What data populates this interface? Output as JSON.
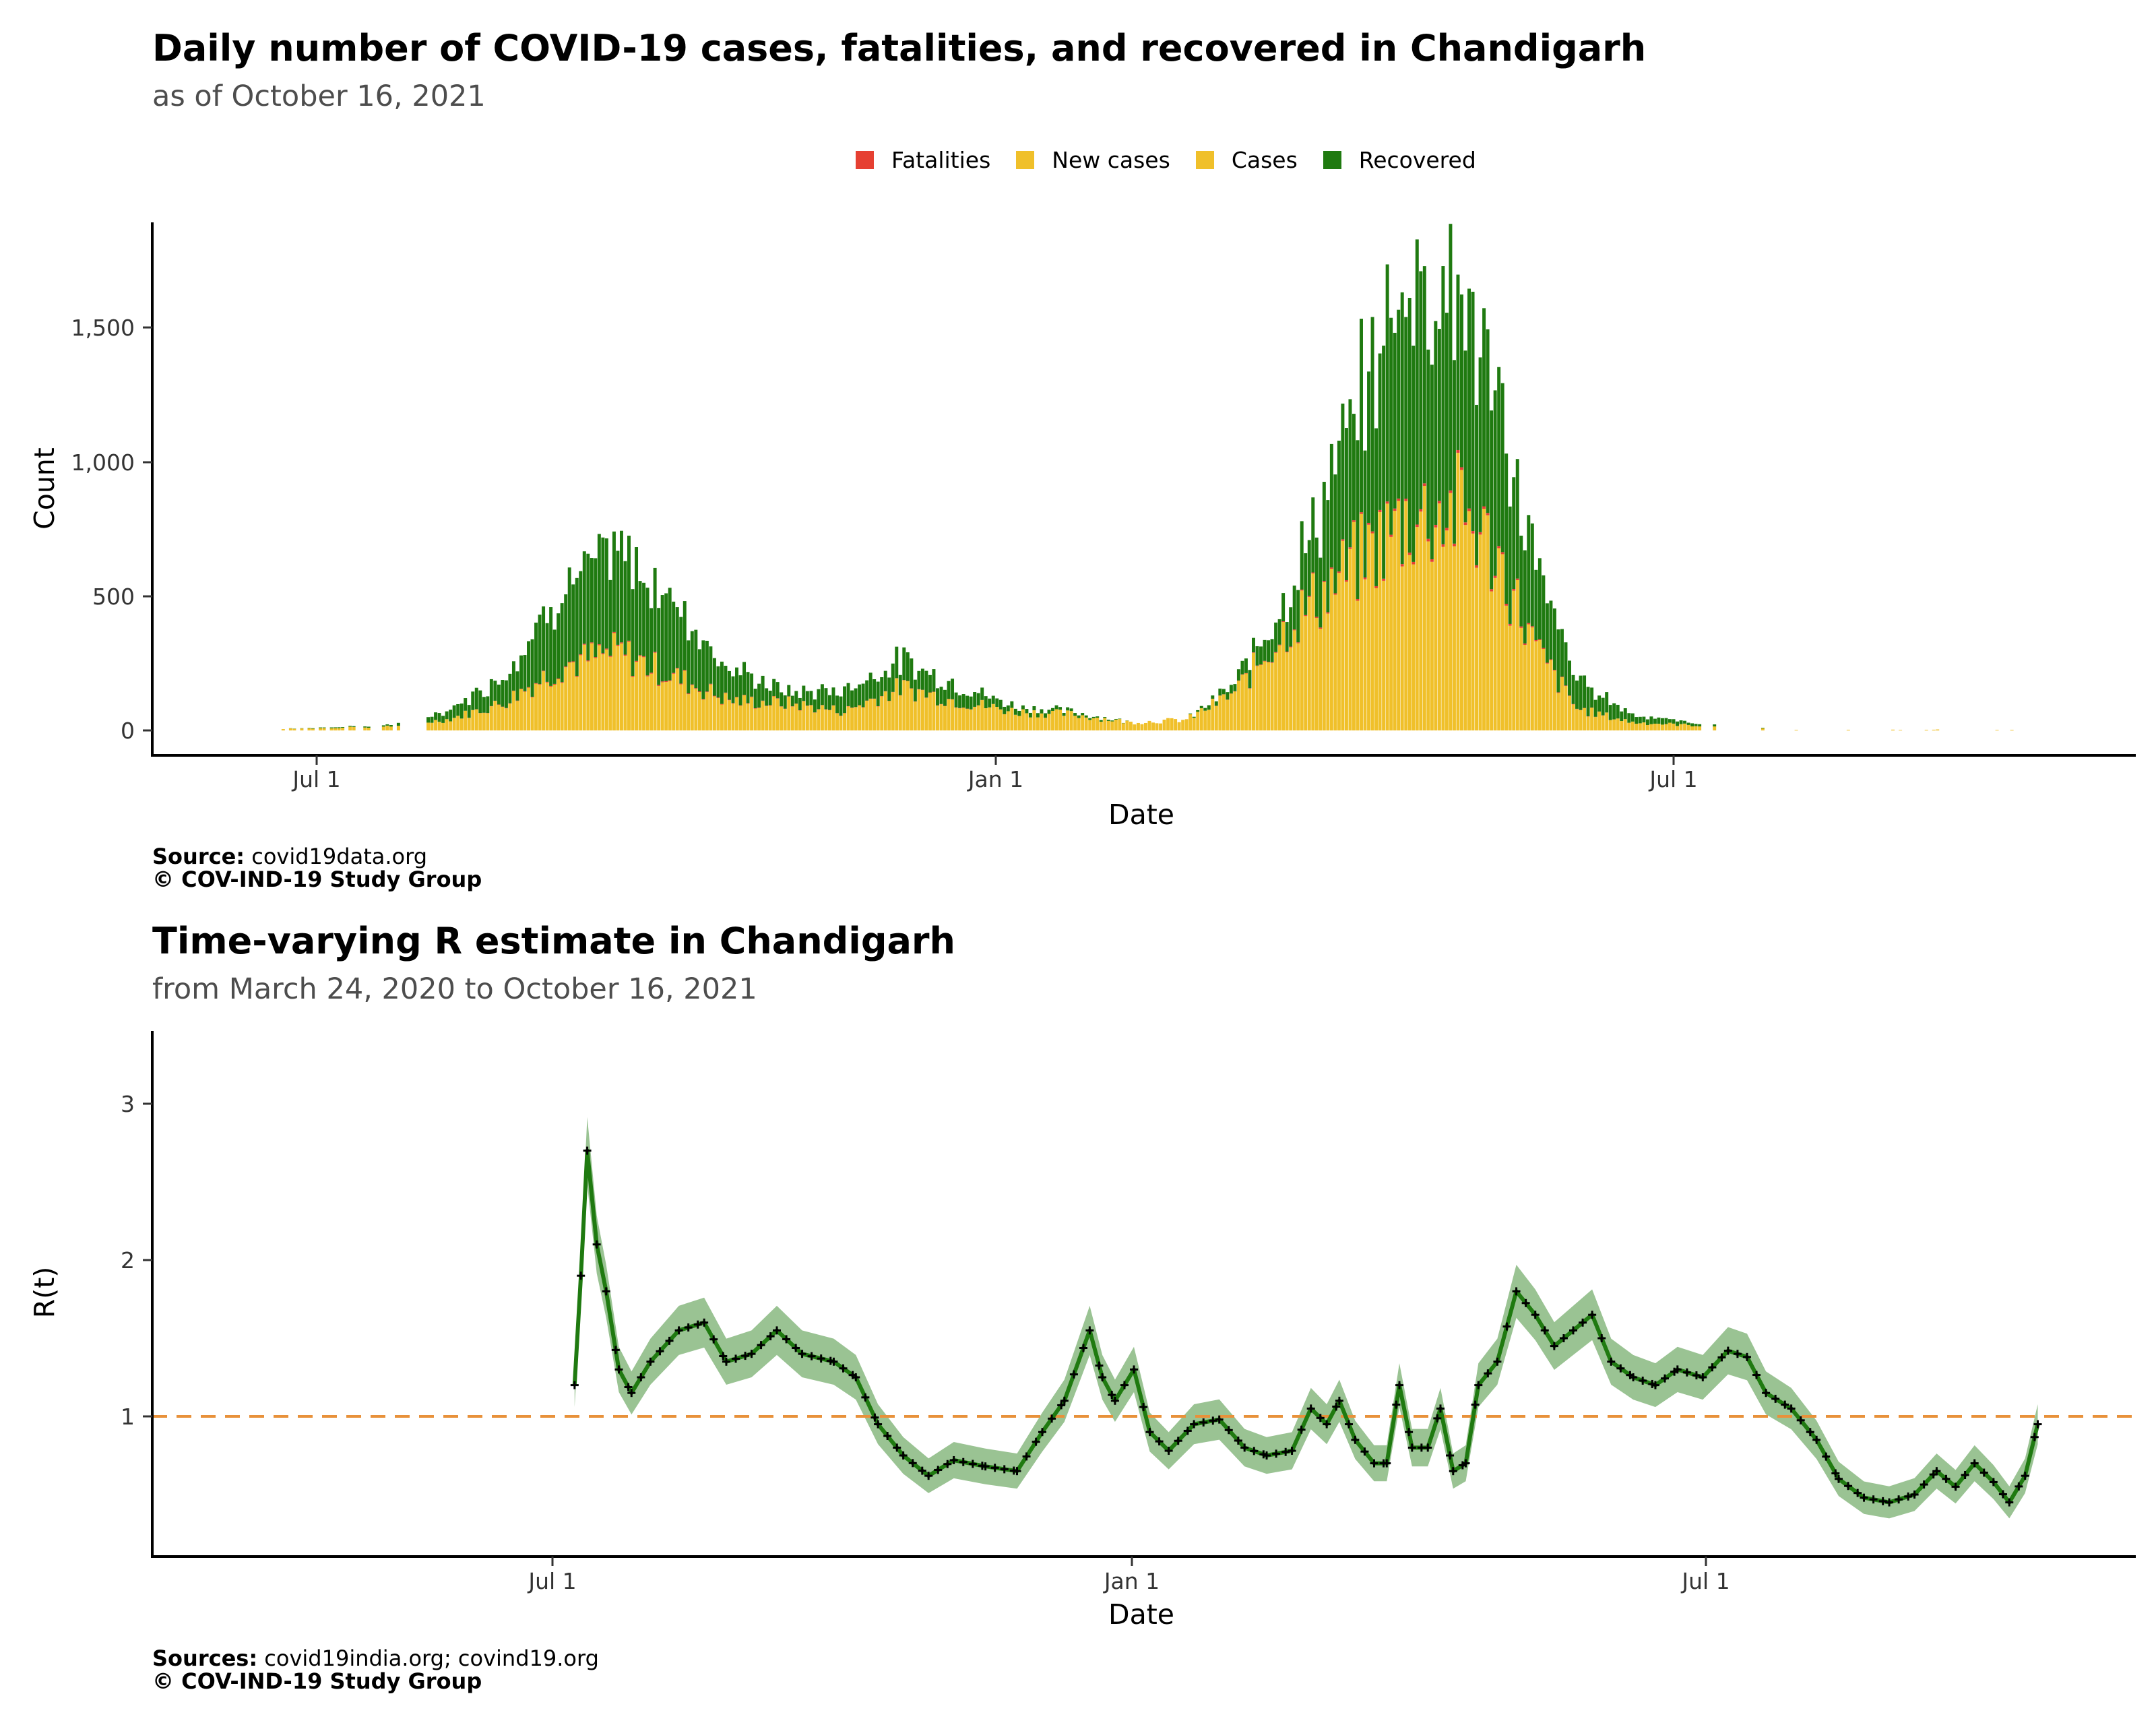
{
  "chart_data": [
    {
      "type": "bar",
      "title": "Daily number of COVID-19 cases, fatalities, and recovered in Chandigarh",
      "subtitle": "as of October 16, 2021",
      "xlabel": "Date",
      "ylabel": "Count",
      "x_tick_labels": [
        "Jul 1",
        "Jan 1",
        "Jul 1"
      ],
      "y_tick_labels": [
        "0",
        "500",
        "1,000",
        "1,500"
      ],
      "ylim": [
        0,
        1800
      ],
      "grid": false,
      "legend_position": "top-center",
      "legend": [
        {
          "name": "Fatalities",
          "color": "#e64032"
        },
        {
          "name": "New cases",
          "color": "#f0c02a"
        },
        {
          "name": "Cases",
          "color": "#f0c02a"
        },
        {
          "name": "Recovered",
          "color": "#1f7a10"
        }
      ],
      "x_dates_monthly": [
        "2020-06-20",
        "2020-07-20",
        "2020-08-05",
        "2020-08-20",
        "2020-09-05",
        "2020-09-20",
        "2020-10-05",
        "2020-10-20",
        "2020-11-05",
        "2020-11-20",
        "2020-12-05",
        "2020-12-20",
        "2021-01-05",
        "2021-01-20",
        "2021-02-05",
        "2021-02-20",
        "2021-03-05",
        "2021-03-20",
        "2021-04-05",
        "2021-04-20",
        "2021-05-05",
        "2021-05-15",
        "2021-05-25",
        "2021-06-05",
        "2021-06-20",
        "2021-07-05",
        "2021-08-01",
        "2021-09-01",
        "2021-10-01"
      ],
      "series": [
        {
          "name": "New cases",
          "values": [
            5,
            15,
            40,
            100,
            240,
            290,
            200,
            110,
            100,
            70,
            160,
            110,
            70,
            60,
            30,
            40,
            140,
            400,
            600,
            780,
            820,
            630,
            300,
            80,
            30,
            20,
            3,
            3,
            3
          ]
        },
        {
          "name": "Recovered",
          "values": [
            0,
            5,
            30,
            100,
            280,
            370,
            280,
            120,
            40,
            80,
            100,
            60,
            20,
            10,
            0,
            0,
            30,
            140,
            500,
            900,
            820,
            540,
            320,
            110,
            30,
            10,
            0,
            0,
            0
          ]
        },
        {
          "name": "Fatalities",
          "values": [
            0,
            0,
            0,
            1,
            3,
            4,
            3,
            2,
            1,
            1,
            1,
            1,
            0,
            0,
            0,
            0,
            1,
            3,
            6,
            9,
            10,
            8,
            4,
            1,
            0,
            0,
            0,
            0,
            0
          ]
        }
      ],
      "source_label": "Source:",
      "source_text": "covid19data.org",
      "copyright": "© COV-IND-19 Study Group"
    },
    {
      "type": "line",
      "title": "Time-varying R estimate in Chandigarh",
      "subtitle": "from March 24, 2020 to October 16, 2021",
      "xlabel": "Date",
      "ylabel": "R(t)",
      "x_tick_labels": [
        "Jul 1",
        "Jan 1",
        "Jul 1"
      ],
      "y_tick_labels": [
        "1",
        "2",
        "3"
      ],
      "ylim": [
        0.0,
        3.5
      ],
      "reference_line": {
        "y": 1,
        "color": "#e8913a",
        "style": "dashed"
      },
      "grid": false,
      "series": [
        {
          "name": "R(t)",
          "color": "#1f7a10",
          "points": [
            [
              "2020-07-08",
              1.2
            ],
            [
              "2020-07-10",
              1.9
            ],
            [
              "2020-07-12",
              2.7
            ],
            [
              "2020-07-15",
              2.1
            ],
            [
              "2020-07-18",
              1.8
            ],
            [
              "2020-07-22",
              1.3
            ],
            [
              "2020-07-26",
              1.15
            ],
            [
              "2020-08-01",
              1.35
            ],
            [
              "2020-08-10",
              1.55
            ],
            [
              "2020-08-18",
              1.6
            ],
            [
              "2020-08-25",
              1.35
            ],
            [
              "2020-09-02",
              1.4
            ],
            [
              "2020-09-10",
              1.55
            ],
            [
              "2020-09-18",
              1.4
            ],
            [
              "2020-09-28",
              1.35
            ],
            [
              "2020-10-05",
              1.25
            ],
            [
              "2020-10-12",
              0.95
            ],
            [
              "2020-10-20",
              0.75
            ],
            [
              "2020-10-28",
              0.62
            ],
            [
              "2020-11-05",
              0.72
            ],
            [
              "2020-11-15",
              0.68
            ],
            [
              "2020-11-25",
              0.65
            ],
            [
              "2020-12-03",
              0.9
            ],
            [
              "2020-12-10",
              1.1
            ],
            [
              "2020-12-18",
              1.55
            ],
            [
              "2020-12-22",
              1.25
            ],
            [
              "2020-12-26",
              1.1
            ],
            [
              "2021-01-01",
              1.3
            ],
            [
              "2021-01-06",
              0.9
            ],
            [
              "2021-01-12",
              0.78
            ],
            [
              "2021-01-20",
              0.95
            ],
            [
              "2021-01-28",
              0.98
            ],
            [
              "2021-02-05",
              0.8
            ],
            [
              "2021-02-12",
              0.75
            ],
            [
              "2021-02-20",
              0.78
            ],
            [
              "2021-02-26",
              1.05
            ],
            [
              "2021-03-03",
              0.95
            ],
            [
              "2021-03-07",
              1.1
            ],
            [
              "2021-03-12",
              0.85
            ],
            [
              "2021-03-18",
              0.7
            ],
            [
              "2021-03-22",
              0.7
            ],
            [
              "2021-03-26",
              1.2
            ],
            [
              "2021-03-30",
              0.8
            ],
            [
              "2021-04-04",
              0.8
            ],
            [
              "2021-04-08",
              1.05
            ],
            [
              "2021-04-12",
              0.65
            ],
            [
              "2021-04-16",
              0.7
            ],
            [
              "2021-04-20",
              1.2
            ],
            [
              "2021-04-26",
              1.35
            ],
            [
              "2021-05-02",
              1.8
            ],
            [
              "2021-05-08",
              1.65
            ],
            [
              "2021-05-14",
              1.45
            ],
            [
              "2021-05-20",
              1.55
            ],
            [
              "2021-05-26",
              1.65
            ],
            [
              "2021-06-01",
              1.35
            ],
            [
              "2021-06-08",
              1.25
            ],
            [
              "2021-06-15",
              1.2
            ],
            [
              "2021-06-22",
              1.3
            ],
            [
              "2021-06-30",
              1.25
            ],
            [
              "2021-07-08",
              1.42
            ],
            [
              "2021-07-14",
              1.38
            ],
            [
              "2021-07-20",
              1.15
            ],
            [
              "2021-07-28",
              1.05
            ],
            [
              "2021-08-05",
              0.85
            ],
            [
              "2021-08-12",
              0.6
            ],
            [
              "2021-08-20",
              0.48
            ],
            [
              "2021-08-28",
              0.45
            ],
            [
              "2021-09-05",
              0.5
            ],
            [
              "2021-09-12",
              0.65
            ],
            [
              "2021-09-18",
              0.55
            ],
            [
              "2021-09-24",
              0.7
            ],
            [
              "2021-09-30",
              0.58
            ],
            [
              "2021-10-05",
              0.45
            ],
            [
              "2021-10-10",
              0.62
            ],
            [
              "2021-10-14",
              0.95
            ]
          ]
        }
      ],
      "source_label": "Sources:",
      "source_text": "covid19india.org; covind19.org",
      "copyright": "© COV-IND-19 Study Group"
    }
  ]
}
